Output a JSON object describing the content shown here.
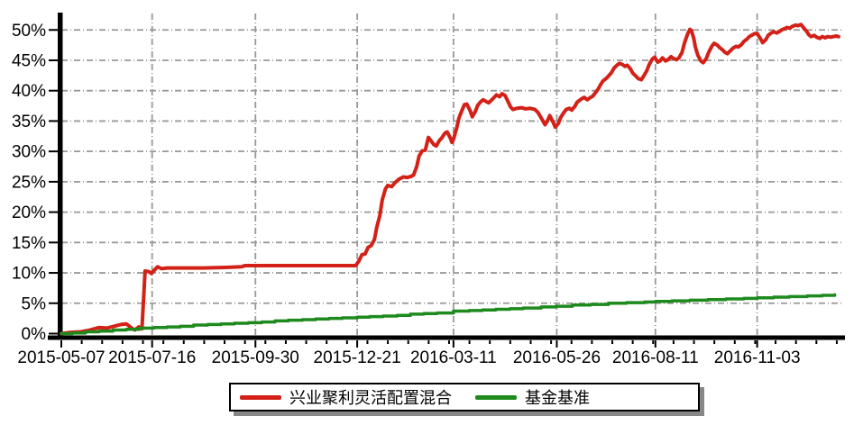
{
  "chart_data": {
    "type": "line",
    "title": "",
    "xlabel": "",
    "ylabel": "",
    "ylim": [
      0,
      50
    ],
    "grid": true,
    "legend_position": "bottom-center",
    "background_color": "#ffffff",
    "axis_color": "#000000",
    "grid_color": "#999999",
    "x_encoding": "fraction of x-axis width, 0 = left axis (2015-05-07), 1 = right edge of plot",
    "y_axis": {
      "unit": "%",
      "ticks": [
        {
          "value": 0,
          "label": "0%"
        },
        {
          "value": 5,
          "label": "5%"
        },
        {
          "value": 10,
          "label": "10%"
        },
        {
          "value": 15,
          "label": "15%"
        },
        {
          "value": 20,
          "label": "20%"
        },
        {
          "value": 25,
          "label": "25%"
        },
        {
          "value": 30,
          "label": "30%"
        },
        {
          "value": 35,
          "label": "35%"
        },
        {
          "value": 40,
          "label": "40%"
        },
        {
          "value": 45,
          "label": "45%"
        },
        {
          "value": 50,
          "label": "50%"
        }
      ]
    },
    "x_axis": {
      "ticks": [
        {
          "pos": 0.0,
          "label": "2015-05-07"
        },
        {
          "pos": 0.116,
          "label": "2015-07-16"
        },
        {
          "pos": 0.248,
          "label": "2015-09-30"
        },
        {
          "pos": 0.378,
          "label": "2015-12-21"
        },
        {
          "pos": 0.501,
          "label": "2016-03-11"
        },
        {
          "pos": 0.633,
          "label": "2016-05-26"
        },
        {
          "pos": 0.759,
          "label": "2016-08-11"
        },
        {
          "pos": 0.889,
          "label": "2016-11-03"
        }
      ]
    },
    "series": [
      {
        "name": "兴业聚利灵活配置混合",
        "color": "#d32118",
        "width": 4,
        "step": false,
        "points": [
          [
            0.0,
            0.0
          ],
          [
            0.012,
            0.2
          ],
          [
            0.025,
            0.3
          ],
          [
            0.037,
            0.6
          ],
          [
            0.048,
            1.0
          ],
          [
            0.058,
            0.9
          ],
          [
            0.067,
            1.2
          ],
          [
            0.076,
            1.5
          ],
          [
            0.083,
            1.6
          ],
          [
            0.09,
            0.9
          ],
          [
            0.094,
            0.6
          ],
          [
            0.099,
            1.1
          ],
          [
            0.103,
            0.8
          ],
          [
            0.105,
            5.5
          ],
          [
            0.107,
            10.3
          ],
          [
            0.112,
            10.2
          ],
          [
            0.115,
            9.9
          ],
          [
            0.12,
            10.6
          ],
          [
            0.123,
            11.0
          ],
          [
            0.128,
            10.7
          ],
          [
            0.135,
            10.8
          ],
          [
            0.152,
            10.8
          ],
          [
            0.181,
            10.8
          ],
          [
            0.21,
            10.9
          ],
          [
            0.23,
            11.0
          ],
          [
            0.235,
            11.2
          ],
          [
            0.267,
            11.2
          ],
          [
            0.313,
            11.2
          ],
          [
            0.359,
            11.2
          ],
          [
            0.376,
            11.2
          ],
          [
            0.38,
            11.9
          ],
          [
            0.384,
            13.0
          ],
          [
            0.388,
            13.1
          ],
          [
            0.392,
            14.2
          ],
          [
            0.396,
            14.5
          ],
          [
            0.4,
            15.5
          ],
          [
            0.403,
            17.5
          ],
          [
            0.407,
            19.5
          ],
          [
            0.41,
            22.0
          ],
          [
            0.414,
            23.8
          ],
          [
            0.417,
            24.4
          ],
          [
            0.422,
            24.2
          ],
          [
            0.426,
            24.8
          ],
          [
            0.431,
            25.4
          ],
          [
            0.437,
            25.8
          ],
          [
            0.442,
            25.7
          ],
          [
            0.447,
            25.9
          ],
          [
            0.45,
            26.1
          ],
          [
            0.454,
            27.5
          ],
          [
            0.457,
            29.2
          ],
          [
            0.461,
            30.1
          ],
          [
            0.465,
            30.2
          ],
          [
            0.469,
            32.3
          ],
          [
            0.472,
            31.8
          ],
          [
            0.476,
            31.1
          ],
          [
            0.479,
            30.9
          ],
          [
            0.483,
            31.8
          ],
          [
            0.486,
            32.2
          ],
          [
            0.49,
            33.0
          ],
          [
            0.493,
            33.2
          ],
          [
            0.497,
            32.2
          ],
          [
            0.499,
            31.5
          ],
          [
            0.501,
            32.0
          ],
          [
            0.505,
            33.8
          ],
          [
            0.508,
            35.5
          ],
          [
            0.512,
            36.8
          ],
          [
            0.515,
            37.7
          ],
          [
            0.518,
            37.8
          ],
          [
            0.522,
            36.8
          ],
          [
            0.525,
            35.7
          ],
          [
            0.529,
            36.6
          ],
          [
            0.532,
            37.6
          ],
          [
            0.536,
            38.2
          ],
          [
            0.539,
            38.5
          ],
          [
            0.543,
            38.2
          ],
          [
            0.546,
            38.0
          ],
          [
            0.55,
            38.5
          ],
          [
            0.553,
            38.9
          ],
          [
            0.556,
            39.3
          ],
          [
            0.56,
            39.0
          ],
          [
            0.563,
            39.5
          ],
          [
            0.567,
            39.2
          ],
          [
            0.57,
            38.4
          ],
          [
            0.574,
            37.3
          ],
          [
            0.577,
            36.9
          ],
          [
            0.582,
            37.1
          ],
          [
            0.588,
            37.2
          ],
          [
            0.593,
            37.0
          ],
          [
            0.599,
            37.1
          ],
          [
            0.605,
            36.9
          ],
          [
            0.609,
            36.4
          ],
          [
            0.614,
            35.3
          ],
          [
            0.618,
            34.4
          ],
          [
            0.621,
            35.0
          ],
          [
            0.624,
            35.9
          ],
          [
            0.628,
            34.9
          ],
          [
            0.631,
            34.0
          ],
          [
            0.635,
            34.6
          ],
          [
            0.638,
            35.6
          ],
          [
            0.642,
            36.4
          ],
          [
            0.645,
            36.9
          ],
          [
            0.649,
            37.1
          ],
          [
            0.652,
            36.8
          ],
          [
            0.656,
            37.4
          ],
          [
            0.659,
            38.1
          ],
          [
            0.664,
            38.6
          ],
          [
            0.668,
            38.9
          ],
          [
            0.672,
            38.5
          ],
          [
            0.675,
            38.8
          ],
          [
            0.679,
            39.1
          ],
          [
            0.682,
            39.6
          ],
          [
            0.686,
            40.3
          ],
          [
            0.689,
            41.0
          ],
          [
            0.692,
            41.6
          ],
          [
            0.696,
            42.0
          ],
          [
            0.699,
            42.4
          ],
          [
            0.703,
            43.0
          ],
          [
            0.706,
            43.7
          ],
          [
            0.71,
            44.2
          ],
          [
            0.713,
            44.5
          ],
          [
            0.717,
            44.3
          ],
          [
            0.72,
            44.0
          ],
          [
            0.723,
            44.2
          ],
          [
            0.727,
            43.6
          ],
          [
            0.73,
            42.9
          ],
          [
            0.734,
            42.4
          ],
          [
            0.737,
            42.0
          ],
          [
            0.741,
            41.8
          ],
          [
            0.744,
            42.4
          ],
          [
            0.748,
            43.3
          ],
          [
            0.751,
            44.3
          ],
          [
            0.755,
            45.2
          ],
          [
            0.758,
            45.5
          ],
          [
            0.762,
            44.7
          ],
          [
            0.765,
            44.9
          ],
          [
            0.768,
            45.4
          ],
          [
            0.772,
            44.9
          ],
          [
            0.775,
            45.1
          ],
          [
            0.779,
            45.6
          ],
          [
            0.782,
            45.3
          ],
          [
            0.786,
            45.1
          ],
          [
            0.789,
            45.4
          ],
          [
            0.793,
            46.3
          ],
          [
            0.796,
            47.8
          ],
          [
            0.8,
            49.3
          ],
          [
            0.803,
            50.1
          ],
          [
            0.805,
            49.9
          ],
          [
            0.808,
            48.6
          ],
          [
            0.81,
            47.2
          ],
          [
            0.813,
            45.9
          ],
          [
            0.817,
            44.9
          ],
          [
            0.82,
            44.6
          ],
          [
            0.824,
            45.3
          ],
          [
            0.827,
            46.3
          ],
          [
            0.831,
            47.3
          ],
          [
            0.834,
            47.8
          ],
          [
            0.838,
            47.5
          ],
          [
            0.841,
            47.1
          ],
          [
            0.844,
            46.8
          ],
          [
            0.848,
            46.3
          ],
          [
            0.851,
            46.1
          ],
          [
            0.855,
            46.6
          ],
          [
            0.858,
            47.0
          ],
          [
            0.862,
            47.3
          ],
          [
            0.865,
            47.2
          ],
          [
            0.869,
            47.6
          ],
          [
            0.872,
            48.1
          ],
          [
            0.876,
            48.5
          ],
          [
            0.879,
            48.9
          ],
          [
            0.883,
            49.2
          ],
          [
            0.886,
            49.4
          ],
          [
            0.889,
            49.4
          ],
          [
            0.893,
            48.6
          ],
          [
            0.896,
            47.9
          ],
          [
            0.9,
            48.4
          ],
          [
            0.903,
            49.1
          ],
          [
            0.907,
            49.5
          ],
          [
            0.91,
            49.7
          ],
          [
            0.914,
            49.5
          ],
          [
            0.917,
            49.7
          ],
          [
            0.92,
            50.0
          ],
          [
            0.924,
            50.2
          ],
          [
            0.927,
            50.4
          ],
          [
            0.931,
            50.3
          ],
          [
            0.934,
            50.6
          ],
          [
            0.938,
            50.8
          ],
          [
            0.941,
            50.7
          ],
          [
            0.945,
            50.9
          ],
          [
            0.948,
            50.4
          ],
          [
            0.952,
            49.8
          ],
          [
            0.955,
            49.2
          ],
          [
            0.958,
            48.9
          ],
          [
            0.962,
            49.1
          ],
          [
            0.965,
            48.8
          ],
          [
            0.969,
            48.6
          ],
          [
            0.972,
            48.9
          ],
          [
            0.976,
            48.7
          ],
          [
            0.979,
            48.9
          ],
          [
            0.983,
            48.8
          ],
          [
            0.986,
            48.9
          ],
          [
            0.99,
            49.0
          ],
          [
            0.993,
            48.9
          ]
        ]
      },
      {
        "name": "基金基准",
        "color": "#1e8a1e",
        "width": 3.5,
        "step": true,
        "points": [
          [
            0.0,
            0.0
          ],
          [
            0.014,
            0.1
          ],
          [
            0.031,
            0.3
          ],
          [
            0.048,
            0.4
          ],
          [
            0.066,
            0.6
          ],
          [
            0.083,
            0.7
          ],
          [
            0.1,
            0.9
          ],
          [
            0.118,
            1.0
          ],
          [
            0.135,
            1.1
          ],
          [
            0.152,
            1.2
          ],
          [
            0.169,
            1.4
          ],
          [
            0.187,
            1.5
          ],
          [
            0.204,
            1.6
          ],
          [
            0.221,
            1.7
          ],
          [
            0.239,
            1.8
          ],
          [
            0.256,
            1.9
          ],
          [
            0.273,
            2.1
          ],
          [
            0.29,
            2.2
          ],
          [
            0.308,
            2.3
          ],
          [
            0.325,
            2.4
          ],
          [
            0.342,
            2.5
          ],
          [
            0.359,
            2.6
          ],
          [
            0.378,
            2.7
          ],
          [
            0.394,
            2.8
          ],
          [
            0.411,
            2.9
          ],
          [
            0.429,
            3.0
          ],
          [
            0.446,
            3.2
          ],
          [
            0.463,
            3.3
          ],
          [
            0.48,
            3.4
          ],
          [
            0.501,
            3.7
          ],
          [
            0.521,
            3.8
          ],
          [
            0.538,
            3.9
          ],
          [
            0.555,
            4.0
          ],
          [
            0.573,
            4.1
          ],
          [
            0.59,
            4.2
          ],
          [
            0.613,
            4.4
          ],
          [
            0.632,
            4.5
          ],
          [
            0.653,
            4.7
          ],
          [
            0.676,
            4.8
          ],
          [
            0.699,
            5.0
          ],
          [
            0.722,
            5.1
          ],
          [
            0.745,
            5.2
          ],
          [
            0.759,
            5.3
          ],
          [
            0.78,
            5.4
          ],
          [
            0.803,
            5.5
          ],
          [
            0.826,
            5.6
          ],
          [
            0.849,
            5.7
          ],
          [
            0.872,
            5.8
          ],
          [
            0.889,
            5.9
          ],
          [
            0.91,
            6.0
          ],
          [
            0.93,
            6.1
          ],
          [
            0.953,
            6.2
          ],
          [
            0.972,
            6.3
          ],
          [
            0.988,
            6.4
          ]
        ]
      }
    ]
  }
}
